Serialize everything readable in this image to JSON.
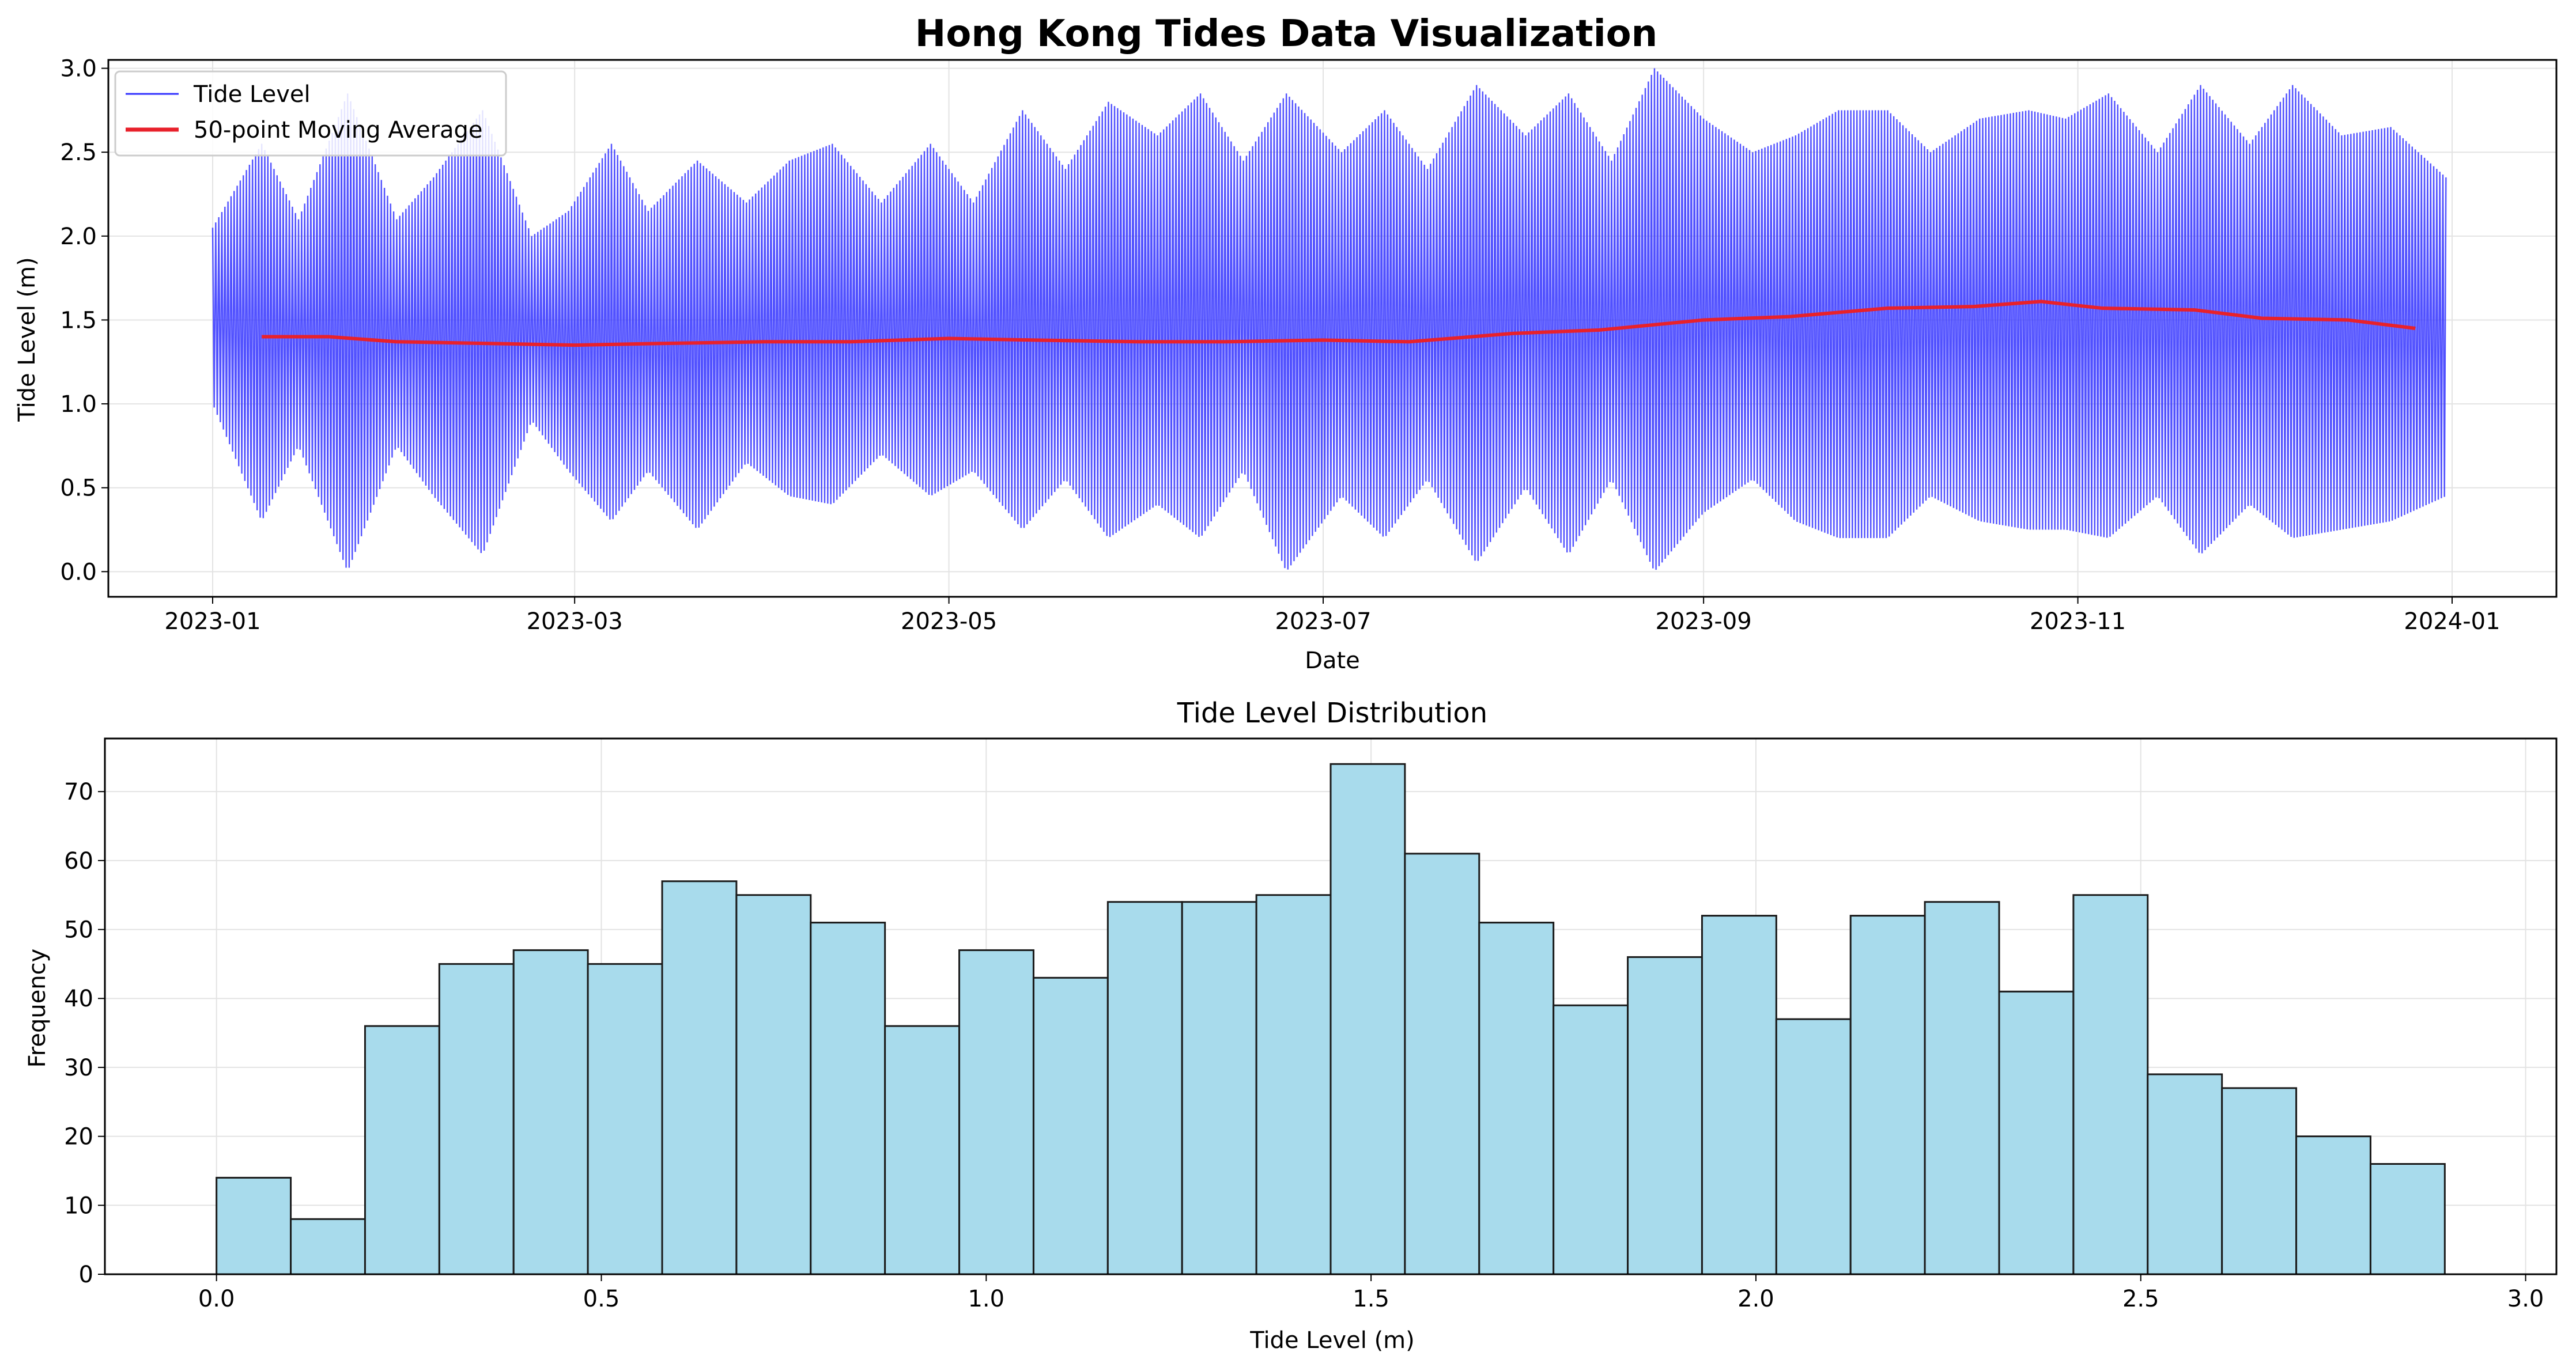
{
  "figure": {
    "title": "Hong Kong Tides Data Visualization"
  },
  "colors": {
    "tide_line": "#3333ff",
    "moving_average": "#e8212b",
    "histogram_fill": "#a8dbec",
    "histogram_edge": "#1a1a1a",
    "grid": "#e3e3e3"
  },
  "chart_data": [
    {
      "type": "line",
      "title": "",
      "xlabel": "Date",
      "ylabel": "Tide Level (m)",
      "x_range": [
        "2023-01-01",
        "2023-12-31"
      ],
      "xlim": [
        "2022-12-15",
        "2024-01-18"
      ],
      "ylim": [
        -0.15,
        3.05
      ],
      "x_ticks": [
        "2023-01",
        "2023-03",
        "2023-05",
        "2023-07",
        "2023-09",
        "2023-11",
        "2024-01"
      ],
      "y_ticks": [
        "0.0",
        "0.5",
        "1.0",
        "1.5",
        "2.0",
        "2.5",
        "3.0"
      ],
      "grid": true,
      "legend": {
        "placement": "upper-left",
        "entries": [
          "Tide Level",
          "50-point Moving Average"
        ]
      },
      "series": [
        {
          "name": "Tide Level",
          "kind": "oscillating",
          "samples_per_day": 4,
          "envelope": {
            "dates": [
              "2023-01-01",
              "2023-01-09",
              "2023-01-15",
              "2023-01-23",
              "2023-01-31",
              "2023-02-06",
              "2023-02-14",
              "2023-02-22",
              "2023-02-28",
              "2023-03-07",
              "2023-03-13",
              "2023-03-21",
              "2023-03-29",
              "2023-04-05",
              "2023-04-12",
              "2023-04-20",
              "2023-04-28",
              "2023-05-05",
              "2023-05-13",
              "2023-05-20",
              "2023-05-27",
              "2023-06-04",
              "2023-06-11",
              "2023-06-18",
              "2023-06-25",
              "2023-07-04",
              "2023-07-11",
              "2023-07-18",
              "2023-07-26",
              "2023-08-03",
              "2023-08-10",
              "2023-08-17",
              "2023-08-24",
              "2023-09-01",
              "2023-09-09",
              "2023-09-16",
              "2023-09-23",
              "2023-10-01",
              "2023-10-08",
              "2023-10-16",
              "2023-10-24",
              "2023-10-30",
              "2023-11-06",
              "2023-11-14",
              "2023-11-21",
              "2023-11-29",
              "2023-12-06",
              "2023-12-14",
              "2023-12-22",
              "2023-12-31"
            ],
            "high": [
              2.05,
              2.55,
              2.1,
              2.85,
              2.1,
              2.35,
              2.75,
              2.0,
              2.15,
              2.55,
              2.15,
              2.45,
              2.2,
              2.45,
              2.55,
              2.2,
              2.55,
              2.2,
              2.75,
              2.4,
              2.8,
              2.6,
              2.85,
              2.45,
              2.85,
              2.5,
              2.75,
              2.4,
              2.9,
              2.6,
              2.85,
              2.45,
              3.0,
              2.7,
              2.5,
              2.6,
              2.75,
              2.75,
              2.5,
              2.7,
              2.75,
              2.7,
              2.85,
              2.5,
              2.9,
              2.55,
              2.9,
              2.6,
              2.65,
              2.35
            ],
            "low": [
              1.0,
              0.3,
              0.75,
              0.0,
              0.75,
              0.45,
              0.1,
              0.9,
              0.6,
              0.3,
              0.6,
              0.25,
              0.65,
              0.45,
              0.4,
              0.7,
              0.45,
              0.6,
              0.25,
              0.55,
              0.2,
              0.4,
              0.2,
              0.6,
              0.0,
              0.45,
              0.2,
              0.55,
              0.05,
              0.5,
              0.1,
              0.55,
              0.0,
              0.35,
              0.55,
              0.3,
              0.2,
              0.2,
              0.45,
              0.3,
              0.25,
              0.25,
              0.2,
              0.45,
              0.1,
              0.4,
              0.2,
              0.25,
              0.3,
              0.45
            ]
          }
        },
        {
          "name": "50-point Moving Average",
          "dates": [
            "2023-01-09",
            "2023-01-20",
            "2023-01-31",
            "2023-02-15",
            "2023-03-01",
            "2023-03-15",
            "2023-04-01",
            "2023-04-15",
            "2023-05-01",
            "2023-05-15",
            "2023-06-01",
            "2023-06-15",
            "2023-07-01",
            "2023-07-15",
            "2023-08-01",
            "2023-08-15",
            "2023-09-01",
            "2023-09-15",
            "2023-10-01",
            "2023-10-15",
            "2023-10-26",
            "2023-11-05",
            "2023-11-20",
            "2023-12-01",
            "2023-12-15",
            "2023-12-26"
          ],
          "values": [
            1.4,
            1.4,
            1.37,
            1.36,
            1.35,
            1.36,
            1.37,
            1.37,
            1.39,
            1.38,
            1.37,
            1.37,
            1.38,
            1.37,
            1.42,
            1.44,
            1.5,
            1.52,
            1.57,
            1.58,
            1.61,
            1.57,
            1.56,
            1.51,
            1.5,
            1.45
          ]
        }
      ]
    },
    {
      "type": "bar",
      "title": "Tide Level Distribution",
      "xlabel": "Tide Level (m)",
      "ylabel": "Frequency",
      "bins_start": 0.0,
      "bin_width": 0.0965,
      "values": [
        14,
        8,
        36,
        45,
        47,
        45,
        57,
        55,
        51,
        36,
        47,
        43,
        54,
        54,
        55,
        74,
        61,
        51,
        39,
        46,
        52,
        37,
        52,
        54,
        41,
        55,
        29,
        27,
        20,
        16
      ],
      "xlim": [
        -0.145,
        3.04
      ],
      "ylim": [
        0,
        77.7
      ],
      "x_ticks": [
        "0.0",
        "0.5",
        "1.0",
        "1.5",
        "2.0",
        "2.5",
        "3.0"
      ],
      "y_ticks": [
        "0",
        "10",
        "20",
        "30",
        "40",
        "50",
        "60",
        "70"
      ],
      "grid": true
    }
  ]
}
